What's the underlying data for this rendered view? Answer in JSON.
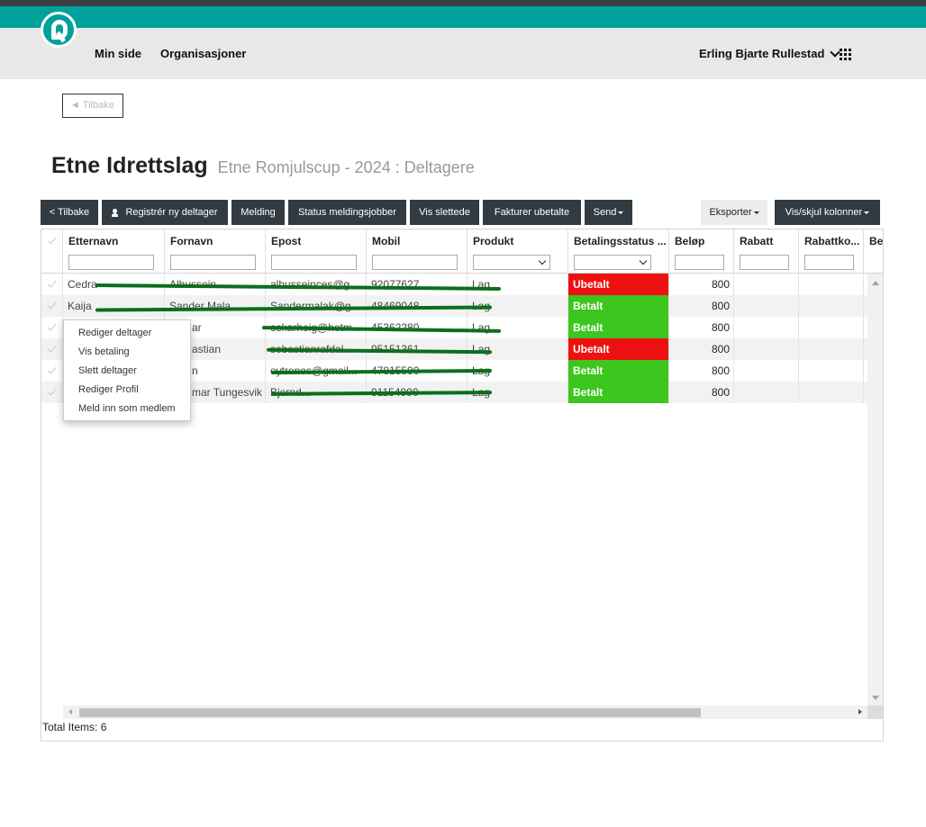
{
  "header": {
    "nav": [
      "Min side",
      "Organisasjoner"
    ],
    "user_name": "Erling Bjarte Rullestad"
  },
  "back_box": {
    "label": "◄ Tilbake"
  },
  "page": {
    "title": "Etne Idrettslag",
    "subtitle": "Etne Romjulscup - 2024 : Deltagere"
  },
  "toolbar": {
    "back": "< Tilbake",
    "register": "Registrér ny deltager",
    "message": "Melding",
    "status_jobs": "Status meldingsjobber",
    "show_deleted": "Vis slettede",
    "invoice_unpaid": "Fakturer ubetalte",
    "send": "Send",
    "export": "Eksporter",
    "toggle_columns": "Vis/skjul kolonner"
  },
  "grid": {
    "columns": [
      "Etternavn",
      "Fornavn",
      "Epost",
      "Mobil",
      "Produkt",
      "Betalingsstatus ...",
      "Beløp",
      "Rabatt",
      "Rabattko...",
      "Bet"
    ],
    "rows": [
      {
        "etternavn": "Cedra",
        "fornavn": "Alhussein",
        "epost": "alhusseinces@g...",
        "mobil": "92077627",
        "produkt": "Lag",
        "status": "Ubetalt",
        "belop": "800"
      },
      {
        "etternavn": "Kaija",
        "fornavn": "Sander Mala",
        "epost": "Sandermalak@g...",
        "mobil": "48469048",
        "produkt": "Lag",
        "status": "Betalt",
        "belop": "800"
      },
      {
        "etternavn": "",
        "fornavn": "ar",
        "epost": "oskarheig@hotm...",
        "mobil": "45362280",
        "produkt": "Lag",
        "status": "Betalt",
        "belop": "800"
      },
      {
        "etternavn": "",
        "fornavn": "astian",
        "epost": "sebastianrafdal...",
        "mobil": "95151361",
        "produkt": "Lag",
        "status": "Ubetalt",
        "belop": "800"
      },
      {
        "etternavn": "",
        "fornavn": "n",
        "epost": "oytrenes@gmail...",
        "mobil": "47815590",
        "produkt": "Lag",
        "status": "Betalt",
        "belop": "800"
      },
      {
        "etternavn": "",
        "fornavn": "mar Tungesvik",
        "epost": "Bjornd...",
        "mobil": "91154990",
        "produkt": "Lag",
        "status": "Betalt",
        "belop": "800"
      }
    ],
    "total": "Total Items: 6"
  },
  "context_menu": {
    "items": [
      "Rediger deltager",
      "Vis betaling",
      "Slett deltager",
      "Rediger Profil",
      "Meld inn som medlem"
    ]
  },
  "colors": {
    "teal": "#00a19a",
    "dark_button": "#333b42",
    "paid": "#3cc61e",
    "unpaid": "#ee1111"
  }
}
